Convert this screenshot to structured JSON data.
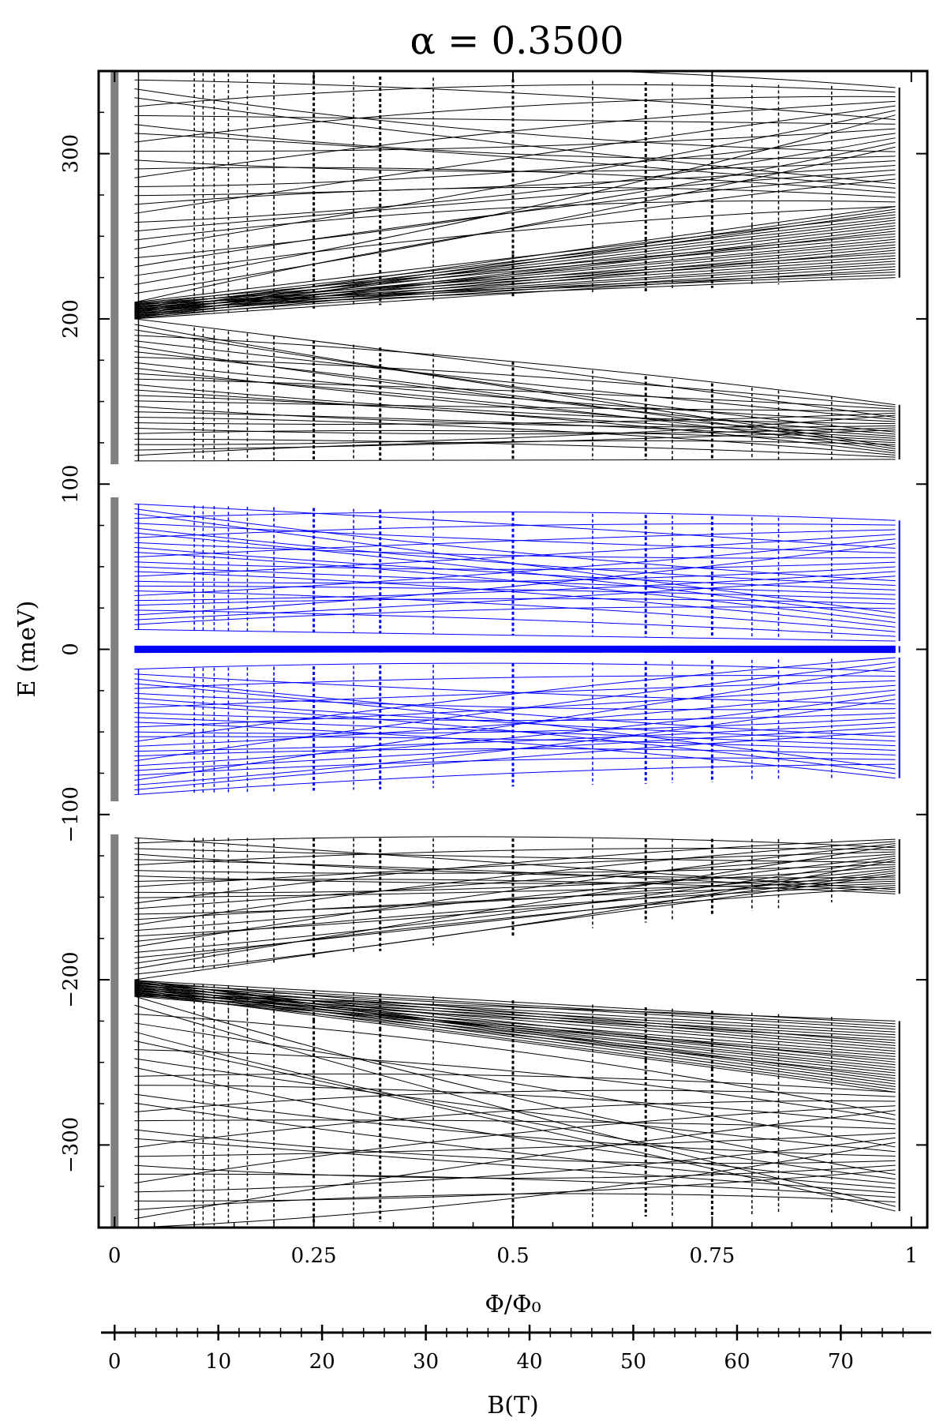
{
  "chart_data": {
    "type": "scatter",
    "title": "α = 0.3500",
    "xlabel": "Φ/Φ₀",
    "ylabel": "E (meV)",
    "xlim": [
      -0.02,
      1.02
    ],
    "ylim": [
      -350,
      350
    ],
    "x_ticks": [
      0,
      0.25,
      0.5,
      0.75,
      1
    ],
    "x_tick_labels": [
      "0",
      "0.25",
      "0.5",
      "0.75",
      "1"
    ],
    "y_ticks": [
      -300,
      -200,
      -100,
      0,
      100,
      200,
      300
    ],
    "y_tick_labels": [
      "−300",
      "−200",
      "−100",
      "0",
      "100",
      "200",
      "300"
    ],
    "secondary_axis": {
      "label": "B(T)",
      "ticks": [
        0,
        10,
        20,
        30,
        40,
        50,
        60,
        70
      ],
      "tick_labels": [
        "0",
        "10",
        "20",
        "30",
        "40",
        "50",
        "60",
        "70"
      ],
      "xlim": [
        0,
        76.8
      ]
    },
    "series": [
      {
        "color": "#000000",
        "bands": [
          {
            "at_zero": [
              114,
              200
            ],
            "at_one": [
              115,
              148
            ]
          },
          {
            "at_zero": [
              200,
              210
            ],
            "at_one": [
              225,
              268
            ]
          },
          {
            "at_zero": [
              210,
              350
            ],
            "at_one": [
              268,
              340
            ]
          },
          {
            "at_zero": [
              -200,
              -114
            ],
            "at_one": [
              -148,
              -115
            ]
          },
          {
            "at_zero": [
              -210,
              -200
            ],
            "at_one": [
              -268,
              -225
            ]
          },
          {
            "at_zero": [
              -350,
              -210
            ],
            "at_one": [
              -340,
              -268
            ]
          }
        ]
      },
      {
        "color": "#0000ff",
        "bands": [
          {
            "at_zero": [
              12,
              88
            ],
            "at_one": [
              5,
              78
            ]
          },
          {
            "at_zero": [
              -88,
              -12
            ],
            "at_one": [
              -78,
              -5
            ]
          },
          {
            "at_zero": [
              -2,
              2
            ],
            "at_one": [
              -2,
              2
            ]
          }
        ]
      }
    ],
    "zero_field_bands": [
      {
        "ymin": 112,
        "ymax": 350,
        "color": "#808080"
      },
      {
        "ymin": -92,
        "ymax": 92,
        "color": "#808080"
      },
      {
        "ymin": -350,
        "ymax": -112,
        "color": "#808080"
      }
    ],
    "grid": false
  }
}
